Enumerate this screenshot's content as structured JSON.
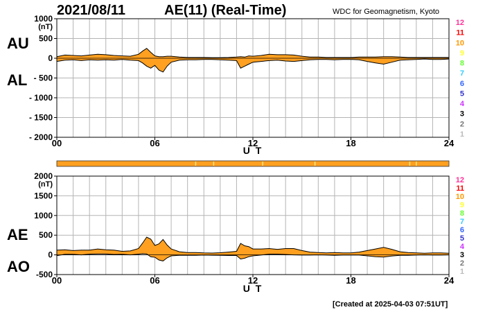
{
  "header": {
    "date": "2021/08/11",
    "title": "AE(11) (Real-Time)",
    "source": "WDC for Geomagnetism, Kyoto"
  },
  "footer": {
    "created": "[Created at 2025-04-03 07:51UT]"
  },
  "colors": {
    "fill": "#ffa020",
    "line": "#000000",
    "grid": "#b4b4b4",
    "strip": "#ffa020",
    "strip_marks": "#ffe680"
  },
  "legend": [
    {
      "label": "12",
      "color": "#ff3399"
    },
    {
      "label": "11",
      "color": "#ff0000"
    },
    {
      "label": "10",
      "color": "#ff9900"
    },
    {
      "label": "9",
      "color": "#ffff33"
    },
    {
      "label": "8",
      "color": "#66ff33"
    },
    {
      "label": "7",
      "color": "#33ccff"
    },
    {
      "label": "6",
      "color": "#3366ff"
    },
    {
      "label": "5",
      "color": "#3333cc"
    },
    {
      "label": "4",
      "color": "#cc33ff"
    },
    {
      "label": "3",
      "color": "#000000"
    },
    {
      "label": "2",
      "color": "#777777"
    },
    {
      "label": "1",
      "color": "#bbbbbb"
    }
  ],
  "status_strip": {
    "marks_hours": [
      8.5,
      9.6,
      12.6,
      15.8,
      21.6,
      22.0
    ]
  },
  "chart_data": [
    {
      "type": "area",
      "panel": "top",
      "labels_left": [
        "AU",
        "AL"
      ],
      "unit": "(nT)",
      "xlabel": "U T",
      "x_ticks": [
        "00",
        "06",
        "12",
        "18",
        "24"
      ],
      "xlim": [
        0,
        24
      ],
      "ylim": [
        -2000,
        1000
      ],
      "y_ticks": [
        {
          "v": 1000,
          "t": "1000"
        },
        {
          "v": 500,
          "t": "500"
        },
        {
          "v": 0,
          "t": "0"
        },
        {
          "v": -500,
          "t": "- 500"
        },
        {
          "v": -1000,
          "t": "- 1000"
        },
        {
          "v": -1500,
          "t": "- 1500"
        },
        {
          "v": -2000,
          "t": "- 2000"
        }
      ],
      "grid": true,
      "x": [
        0,
        0.5,
        1,
        1.5,
        2,
        2.5,
        3,
        3.5,
        4,
        4.5,
        5,
        5.25,
        5.5,
        5.75,
        6,
        6.25,
        6.5,
        6.75,
        7,
        7.5,
        8,
        8.5,
        9,
        9.5,
        10,
        10.5,
        11,
        11.25,
        11.5,
        11.75,
        12,
        12.5,
        13,
        13.5,
        14,
        14.5,
        15,
        15.5,
        16,
        16.5,
        17,
        17.5,
        18,
        18.5,
        19,
        19.5,
        20,
        20.5,
        21,
        21.5,
        22,
        22.5,
        23,
        23.5,
        24
      ],
      "series": [
        {
          "name": "AU",
          "values": [
            40,
            80,
            70,
            60,
            80,
            100,
            90,
            70,
            60,
            50,
            100,
            180,
            250,
            150,
            60,
            40,
            40,
            50,
            50,
            30,
            20,
            20,
            20,
            15,
            15,
            20,
            30,
            40,
            30,
            60,
            50,
            70,
            100,
            90,
            90,
            80,
            50,
            30,
            30,
            20,
            20,
            20,
            20,
            30,
            30,
            30,
            40,
            40,
            30,
            20,
            20,
            20,
            20,
            20,
            20
          ]
        },
        {
          "name": "AL",
          "values": [
            -80,
            -50,
            -40,
            -60,
            -40,
            -50,
            -40,
            -50,
            -30,
            -50,
            -60,
            -120,
            -200,
            -250,
            -180,
            -300,
            -350,
            -200,
            -100,
            -50,
            -40,
            -40,
            -30,
            -30,
            -40,
            -50,
            -60,
            -250,
            -200,
            -150,
            -100,
            -80,
            -60,
            -50,
            -70,
            -80,
            -60,
            -40,
            -30,
            -30,
            -40,
            -30,
            -30,
            -40,
            -80,
            -120,
            -150,
            -100,
            -50,
            -40,
            -30,
            -20,
            -30,
            -30,
            -20
          ]
        }
      ]
    },
    {
      "type": "area",
      "panel": "bottom",
      "labels_left": [
        "AE",
        "AO"
      ],
      "unit": "(nT)",
      "xlabel": "U T",
      "x_ticks": [
        "00",
        "06",
        "12",
        "18",
        "24"
      ],
      "xlim": [
        0,
        24
      ],
      "ylim": [
        -500,
        2000
      ],
      "y_ticks": [
        {
          "v": 2000,
          "t": "2000"
        },
        {
          "v": 1500,
          "t": "1500"
        },
        {
          "v": 1000,
          "t": "1000"
        },
        {
          "v": 500,
          "t": "500"
        },
        {
          "v": 0,
          "t": "0"
        },
        {
          "v": -500,
          "t": "-500"
        }
      ],
      "grid": true,
      "x": [
        0,
        0.5,
        1,
        1.5,
        2,
        2.5,
        3,
        3.5,
        4,
        4.5,
        5,
        5.25,
        5.5,
        5.75,
        6,
        6.25,
        6.5,
        6.75,
        7,
        7.5,
        8,
        8.5,
        9,
        9.5,
        10,
        10.5,
        11,
        11.25,
        11.5,
        11.75,
        12,
        12.5,
        13,
        13.5,
        14,
        14.5,
        15,
        15.5,
        16,
        16.5,
        17,
        17.5,
        18,
        18.5,
        19,
        19.5,
        20,
        20.5,
        21,
        21.5,
        22,
        22.5,
        23,
        23.5,
        24
      ],
      "series": [
        {
          "name": "AE",
          "values": [
            120,
            130,
            110,
            120,
            120,
            150,
            130,
            120,
            90,
            100,
            160,
            300,
            450,
            400,
            240,
            280,
            390,
            250,
            150,
            80,
            60,
            60,
            50,
            45,
            55,
            70,
            90,
            290,
            230,
            210,
            150,
            150,
            160,
            140,
            160,
            160,
            110,
            70,
            60,
            50,
            60,
            50,
            50,
            70,
            110,
            150,
            190,
            140,
            80,
            60,
            50,
            40,
            50,
            50,
            40
          ]
        },
        {
          "name": "AO",
          "values": [
            -20,
            15,
            15,
            0,
            20,
            25,
            25,
            10,
            15,
            0,
            20,
            30,
            25,
            -50,
            -60,
            -130,
            -155,
            -75,
            -25,
            -10,
            -10,
            -10,
            -5,
            -8,
            -12,
            -15,
            -15,
            -105,
            -85,
            -45,
            -25,
            -5,
            20,
            20,
            10,
            0,
            -5,
            -5,
            0,
            -5,
            -10,
            -5,
            -5,
            -5,
            -25,
            -45,
            -55,
            -30,
            -10,
            -10,
            -5,
            0,
            -5,
            -5,
            0
          ]
        }
      ]
    }
  ]
}
